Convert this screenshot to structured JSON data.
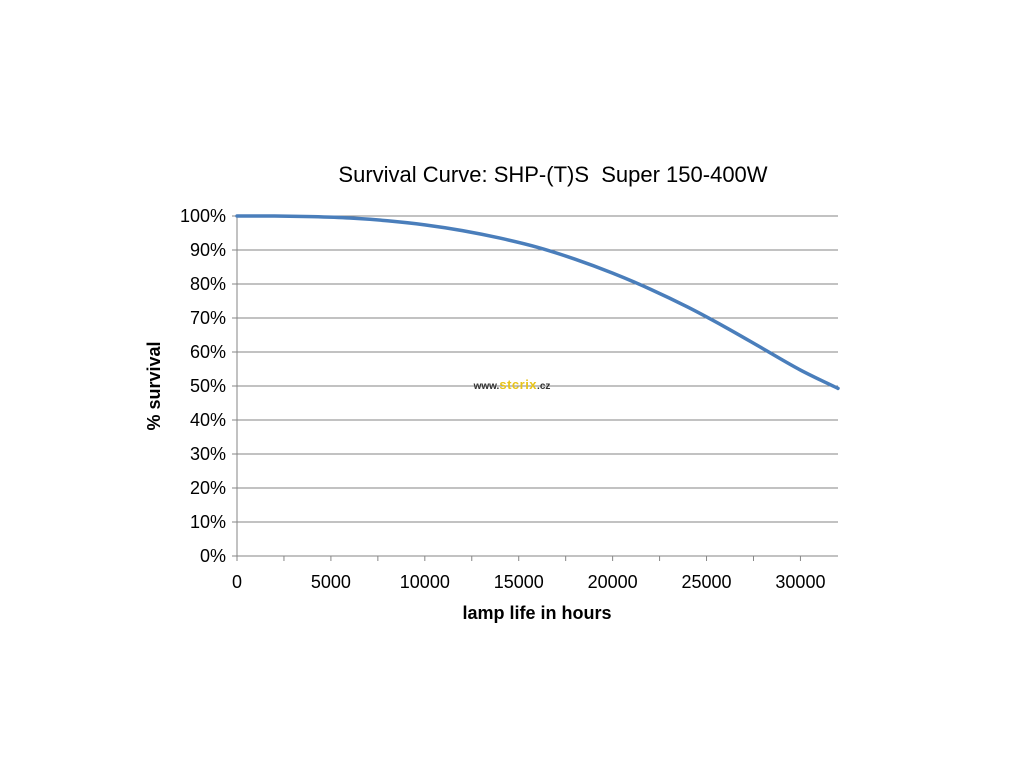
{
  "chart_data": {
    "type": "line",
    "title": "Survival Curve: SHP-(T)S  Super 150-400W",
    "xlabel": "lamp life in hours",
    "ylabel": "% survival",
    "xlim": [
      0,
      32000
    ],
    "ylim": [
      0,
      100
    ],
    "x_ticks": [
      0,
      5000,
      10000,
      15000,
      20000,
      25000,
      30000
    ],
    "x_tick_labels": [
      "0",
      "5000",
      "10000",
      "15000",
      "20000",
      "25000",
      "30000"
    ],
    "x_minor_step": 2500,
    "y_ticks": [
      0,
      10,
      20,
      30,
      40,
      50,
      60,
      70,
      80,
      90,
      100
    ],
    "y_tick_labels": [
      "0%",
      "10%",
      "20%",
      "30%",
      "40%",
      "50%",
      "60%",
      "70%",
      "80%",
      "90%",
      "100%"
    ],
    "grid": true,
    "series": [
      {
        "name": "% survival",
        "color": "#4a7ebb",
        "x": [
          0,
          2000,
          4000,
          6000,
          8000,
          10000,
          12000,
          14000,
          16000,
          18000,
          20000,
          22000,
          24000,
          26000,
          28000,
          30000,
          32000
        ],
        "values": [
          100,
          100,
          99.8,
          99.4,
          98.6,
          97.4,
          95.7,
          93.5,
          90.8,
          87.3,
          83.2,
          78.5,
          73.2,
          67.3,
          61.0,
          54.7,
          49.3
        ]
      }
    ]
  },
  "watermark": {
    "prefix": "www.",
    "brand": "stcrix",
    "suffix": ".cz",
    "brand_color": "#e8c41a"
  },
  "colors": {
    "gridline": "#868686",
    "axis": "#868686",
    "line": "#4a7ebb"
  }
}
